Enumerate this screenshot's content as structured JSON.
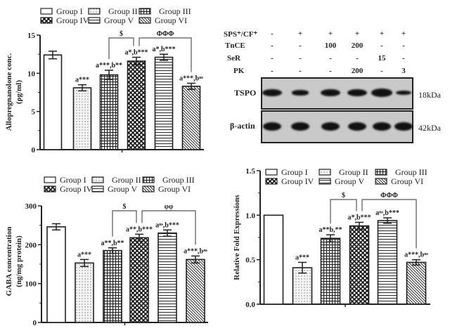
{
  "chart_data": [
    {
      "type": "bar",
      "panel": "allopregnanolone",
      "ylabel": [
        "Allopregnanolone conc.",
        "(ρg/ml)"
      ],
      "ylim": [
        0,
        15
      ],
      "yticks": [
        0,
        5,
        10,
        15
      ],
      "categories": [
        "Group I",
        "Group II",
        "Group III",
        "Group IV",
        "Group V",
        "Group VI"
      ],
      "values": [
        12.4,
        8.1,
        9.8,
        11.6,
        12.1,
        8.3
      ],
      "errors": [
        0.5,
        0.4,
        0.6,
        0.5,
        0.4,
        0.4
      ],
      "bar_labels": [
        "",
        "a***",
        "a***,b**",
        "a*,b***",
        "a*,b***",
        "a***,bⁿˢ"
      ],
      "brackets": [
        {
          "from": 2,
          "to": 3,
          "label": "$"
        },
        {
          "from": 3,
          "to": 5,
          "label": "ΦΦΦ"
        }
      ],
      "legend": "top"
    },
    {
      "type": "bar",
      "panel": "gaba",
      "ylabel": [
        "GABA concentration",
        "(ng/mg protein)"
      ],
      "ylim": [
        0,
        300
      ],
      "yticks": [
        0,
        100,
        200,
        300
      ],
      "categories": [
        "Group I",
        "Group II",
        "Group III",
        "Group IV",
        "Group V",
        "Group VI"
      ],
      "values": [
        246,
        153,
        185,
        218,
        230,
        162
      ],
      "errors": [
        8,
        9,
        7,
        9,
        8,
        9
      ],
      "bar_labels": [
        "",
        "a***",
        "a**,b**",
        "a**,b***",
        "aⁿˢ,b***",
        "a***,bⁿˢ"
      ],
      "brackets": [
        {
          "from": 2,
          "to": 3,
          "label": "$"
        },
        {
          "from": 3,
          "to": 5,
          "label": "φφ"
        }
      ],
      "legend": "top"
    },
    {
      "type": "bar",
      "panel": "tspo-fold",
      "ylabel": [
        "Relative Fold Expressions"
      ],
      "ylim": [
        0,
        1.5
      ],
      "yticks": [
        0.0,
        0.5,
        1.0,
        1.5
      ],
      "ytick_labels": [
        "0.0",
        "0.5",
        "1.0",
        "1.5"
      ],
      "categories": [
        "Group I",
        "Group II",
        "Group III",
        "Group IV",
        "Group V",
        "Group VI"
      ],
      "values": [
        1.0,
        0.41,
        0.74,
        0.88,
        0.94,
        0.47
      ],
      "errors": [
        0,
        0.06,
        0.04,
        0.04,
        0.03,
        0.03
      ],
      "bar_labels": [
        "",
        "a***",
        "a**b,**",
        "a*,b***",
        "aⁿˢ,b***",
        "a***,bⁿˢ"
      ],
      "brackets": [
        {
          "from": 2,
          "to": 3,
          "label": "$"
        },
        {
          "from": 3,
          "to": 5,
          "label": "ΦΦΦ"
        }
      ],
      "legend": "top"
    }
  ],
  "blot": {
    "rows": [
      {
        "label": "SPS⁺/CF⁺",
        "lanes": [
          "-",
          "+",
          "+",
          "+",
          "+",
          "+"
        ]
      },
      {
        "label": "TnCE",
        "lanes": [
          "-",
          "-",
          "100",
          "200",
          "-",
          "-"
        ]
      },
      {
        "label": "SeR",
        "lanes": [
          "-",
          "-",
          "-",
          "-",
          "15",
          "-"
        ]
      },
      {
        "label": "PK",
        "lanes": [
          "-",
          "-",
          "-",
          "200",
          "-",
          "3"
        ]
      }
    ],
    "tspo_label": "TSPO",
    "tspo_kda": "18kDa",
    "tspo_intensity": [
      0.8,
      0.45,
      0.85,
      0.8,
      0.95,
      0.4
    ],
    "actin_label": "β-actin",
    "actin_kda": "42kDa"
  }
}
